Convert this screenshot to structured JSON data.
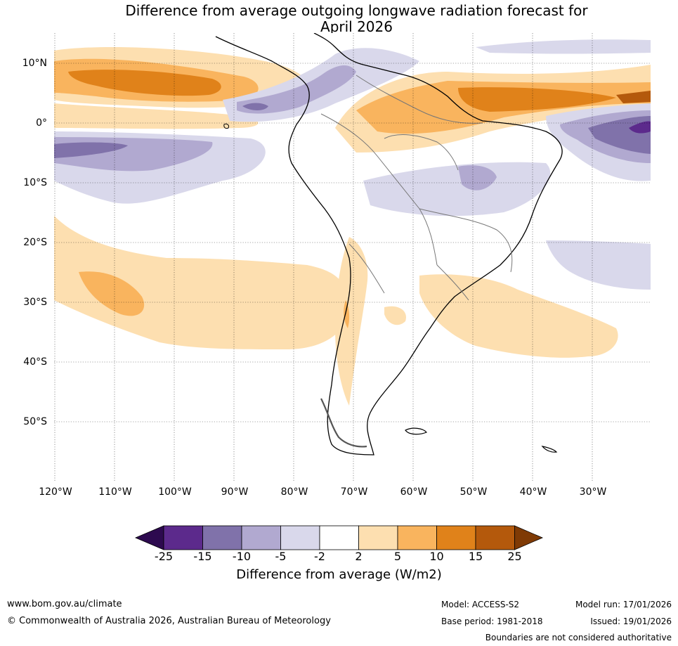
{
  "title": {
    "line1": "Difference from average outgoing longwave radiation forecast for",
    "line2": "April 2026"
  },
  "map": {
    "latitude_labels": [
      "10°N",
      "0°",
      "10°S",
      "20°S",
      "30°S",
      "40°S",
      "50°S"
    ],
    "longitude_labels": [
      "120°W",
      "110°W",
      "100°W",
      "90°W",
      "80°W",
      "70°W",
      "60°W",
      "50°W",
      "40°W",
      "30°W"
    ]
  },
  "legend": {
    "title": "Difference from average (W/m2)",
    "ticks": [
      "-25",
      "-15",
      "-10",
      "-5",
      "-2",
      "2",
      "5",
      "10",
      "15",
      "25"
    ],
    "colors": [
      "#2d0a4f",
      "#5c2a8c",
      "#8072aa",
      "#b1a9d0",
      "#d9d8eb",
      "#ffffff",
      "#fddfb0",
      "#f9b45e",
      "#e0821a",
      "#b4590c",
      "#7f3a05"
    ]
  },
  "footer": {
    "website": "www.bom.gov.au/climate",
    "copyright": "© Commonwealth of Australia 2026, Australian Bureau of Meteorology",
    "model": "Model: ACCESS-S2",
    "base_period": "Base period: 1981-2018",
    "model_run": "Model run: 17/01/2026",
    "issued": "Issued: 19/01/2026",
    "disclaimer": "Boundaries are not considered authoritative"
  }
}
